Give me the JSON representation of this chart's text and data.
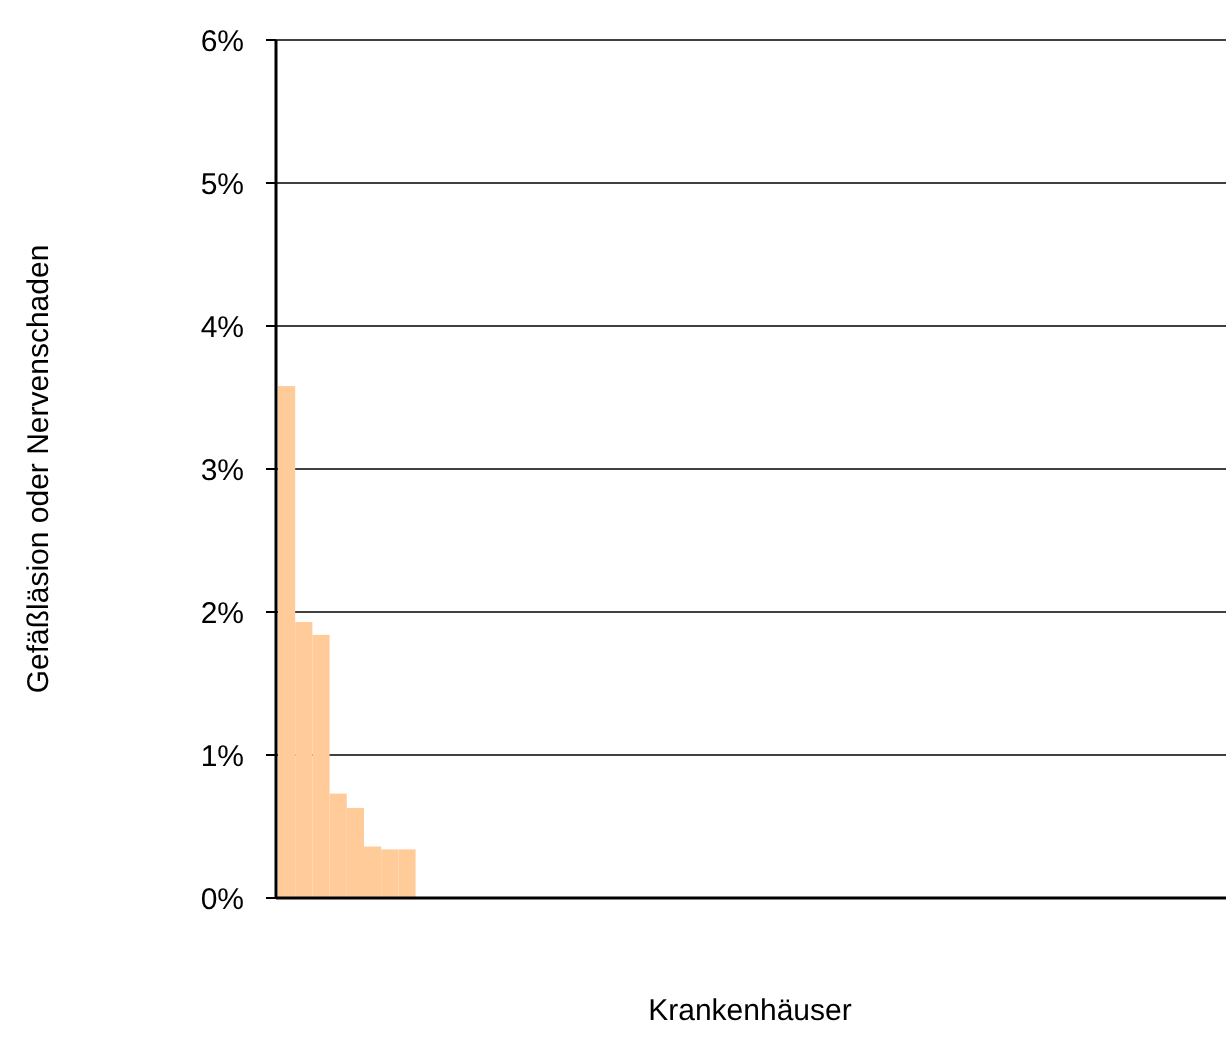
{
  "chart_data": {
    "type": "bar",
    "xlabel": "Krankenhäuser",
    "ylabel": "Gefäßläsion oder Nervenschaden",
    "categories": [
      null,
      null,
      null,
      null,
      null,
      null,
      null,
      null,
      null,
      null,
      null,
      null,
      null,
      null,
      null,
      null,
      null,
      null,
      null,
      null,
      null,
      null,
      null,
      null,
      null,
      null,
      null,
      null,
      null,
      null,
      null,
      null,
      null,
      null,
      null,
      null,
      null,
      null,
      null,
      null,
      null,
      null,
      null,
      null,
      null,
      null,
      null,
      null,
      null,
      null,
      null,
      null,
      null,
      null,
      null
    ],
    "values": [
      3.58,
      1.93,
      1.84,
      0.73,
      0.63,
      0.36,
      0.34,
      0.34,
      0,
      0,
      0,
      0,
      0,
      0,
      0,
      0,
      0,
      0,
      0,
      0,
      0,
      0,
      0,
      0,
      0,
      0,
      0,
      0,
      0,
      0,
      0,
      0,
      0,
      0,
      0,
      0,
      0,
      0,
      0,
      0,
      0,
      0,
      0,
      0,
      0,
      0,
      0,
      0,
      0,
      0,
      0,
      0,
      0,
      0,
      0
    ],
    "color": "#ffcc99",
    "ylim": [
      0,
      6
    ],
    "yticks": [
      {
        "value": 0,
        "label": "0%"
      },
      {
        "value": 1,
        "label": "1%"
      },
      {
        "value": 2,
        "label": "2%"
      },
      {
        "value": 3,
        "label": "3%"
      },
      {
        "value": 4,
        "label": "4%"
      },
      {
        "value": 5,
        "label": "5%"
      },
      {
        "value": 6,
        "label": "6%"
      }
    ],
    "grid": "y"
  }
}
